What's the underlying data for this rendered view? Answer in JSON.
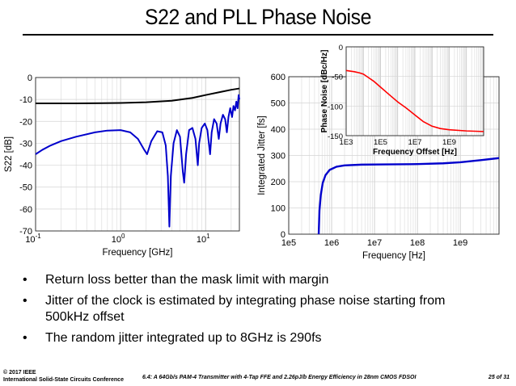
{
  "title": "S22 and PLL Phase Noise",
  "bullets": [
    "Return loss better than the mask limit with margin",
    "Jitter of the clock is estimated by integrating phase noise starting from 500kHz offset",
    "The random jitter integrated up to 8GHz is 290fs"
  ],
  "bullet_symbol": "•",
  "footer": {
    "copyright": "© 2017 IEEE",
    "conference": "International Solid-State Circuits Conference",
    "paper": "6.4: A 64Gb/s PAM-4 Transmitter with 4-Tap FFE and 2.26pJ/b Energy Efficiency in 28nm CMOS FDSOI",
    "page": "25 of 31"
  },
  "chart_data": [
    {
      "type": "line",
      "xlabel": "Frequency [GHz]",
      "ylabel": "S22 [dB]",
      "xscale": "log",
      "xlim": [
        0.1,
        25
      ],
      "ylim": [
        -70,
        0
      ],
      "xticks": [
        {
          "base": "10",
          "exp": "-1",
          "value": 0.1
        },
        {
          "base": "10",
          "exp": "0",
          "value": 1
        },
        {
          "base": "10",
          "exp": "1",
          "value": 10
        }
      ],
      "yticks": [
        "0",
        "-10",
        "-20",
        "-30",
        "-40",
        "-50",
        "-60",
        "-70"
      ],
      "grid": true,
      "series": [
        {
          "color": "#000000",
          "points": [
            [
              0.1,
              -11.8
            ],
            [
              0.3,
              -11.8
            ],
            [
              1,
              -11.6
            ],
            [
              2,
              -11.3
            ],
            [
              4,
              -10.6
            ],
            [
              7,
              -9.3
            ],
            [
              10,
              -8.0
            ],
            [
              15,
              -6.6
            ],
            [
              20,
              -5.6
            ],
            [
              25,
              -5.0
            ]
          ]
        },
        {
          "color": "#0000cc",
          "points": [
            [
              0.1,
              -35
            ],
            [
              0.12,
              -33
            ],
            [
              0.15,
              -31
            ],
            [
              0.2,
              -29
            ],
            [
              0.3,
              -27
            ],
            [
              0.5,
              -25
            ],
            [
              0.7,
              -24.2
            ],
            [
              1,
              -24
            ],
            [
              1.3,
              -25
            ],
            [
              1.6,
              -28
            ],
            [
              1.9,
              -33
            ],
            [
              2.05,
              -35
            ],
            [
              2.3,
              -29
            ],
            [
              2.7,
              -24.5
            ],
            [
              3.1,
              -25
            ],
            [
              3.4,
              -31
            ],
            [
              3.6,
              -45
            ],
            [
              3.75,
              -68
            ],
            [
              3.9,
              -45
            ],
            [
              4.2,
              -30
            ],
            [
              4.6,
              -24
            ],
            [
              5.0,
              -27
            ],
            [
              5.4,
              -43
            ],
            [
              5.6,
              -48
            ],
            [
              5.9,
              -35
            ],
            [
              6.4,
              -24
            ],
            [
              7.0,
              -23
            ],
            [
              7.6,
              -28
            ],
            [
              8.1,
              -40
            ],
            [
              8.4,
              -30
            ],
            [
              9.0,
              -23
            ],
            [
              9.8,
              -21
            ],
            [
              10.5,
              -24
            ],
            [
              11.3,
              -35
            ],
            [
              11.8,
              -25
            ],
            [
              12.6,
              -19
            ],
            [
              13.5,
              -21
            ],
            [
              14.3,
              -28
            ],
            [
              15.0,
              -21
            ],
            [
              16.0,
              -17
            ],
            [
              17.0,
              -19
            ],
            [
              17.8,
              -25
            ],
            [
              18.6,
              -18
            ],
            [
              19.5,
              -14
            ],
            [
              20.5,
              -18
            ],
            [
              21.3,
              -13
            ],
            [
              22.2,
              -15
            ],
            [
              23.0,
              -11
            ],
            [
              23.8,
              -14
            ],
            [
              24.5,
              -8
            ],
            [
              25,
              -10
            ]
          ]
        }
      ]
    },
    {
      "type": "line",
      "xlabel": "Frequency [Hz]",
      "ylabel": "Integrated Jitter [fs]",
      "xscale": "log",
      "xlim": [
        100000,
        8000000000
      ],
      "ylim": [
        0,
        600
      ],
      "xticks": [
        "1e5",
        "1e6",
        "1e7",
        "1e8",
        "1e9"
      ],
      "yticks": [
        "0",
        "100",
        "200",
        "300",
        "400",
        "500",
        "600"
      ],
      "grid": true,
      "series": [
        {
          "color": "#0000cc",
          "points": [
            [
              500000,
              0
            ],
            [
              520000,
              90
            ],
            [
              560000,
              150
            ],
            [
              620000,
              195
            ],
            [
              720000,
              225
            ],
            [
              900000,
              245
            ],
            [
              1300000,
              257
            ],
            [
              2000000,
              262
            ],
            [
              5000000,
              265
            ],
            [
              20000000,
              266
            ],
            [
              100000000,
              267
            ],
            [
              400000000,
              270
            ],
            [
              1000000000,
              274
            ],
            [
              3000000000,
              282
            ],
            [
              8000000000,
              290
            ]
          ]
        }
      ]
    },
    {
      "type": "line",
      "xlabel": "Frequency Offset [Hz]",
      "ylabel": "Phase Noise [dBc/Hz]",
      "xscale": "log",
      "xlim": [
        1000,
        100000000000
      ],
      "ylim": [
        -150,
        0
      ],
      "xticks": [
        "1E3",
        "1E5",
        "1E7",
        "1E9"
      ],
      "yticks": [
        "0",
        "-50",
        "-100",
        "-150"
      ],
      "grid": true,
      "series": [
        {
          "color": "#ff0000",
          "points": [
            [
              1000,
              -40
            ],
            [
              3000,
              -42
            ],
            [
              6000,
              -44
            ],
            [
              10000,
              -46
            ],
            [
              20000,
              -52
            ],
            [
              40000,
              -58
            ],
            [
              100000,
              -68
            ],
            [
              300000,
              -80
            ],
            [
              1000000,
              -93
            ],
            [
              3000000,
              -103
            ],
            [
              10000000,
              -115
            ],
            [
              30000000,
              -126
            ],
            [
              100000000,
              -134
            ],
            [
              300000000,
              -138
            ],
            [
              1000000000,
              -140
            ],
            [
              10000000000,
              -142
            ],
            [
              100000000000,
              -143
            ]
          ]
        }
      ]
    }
  ]
}
